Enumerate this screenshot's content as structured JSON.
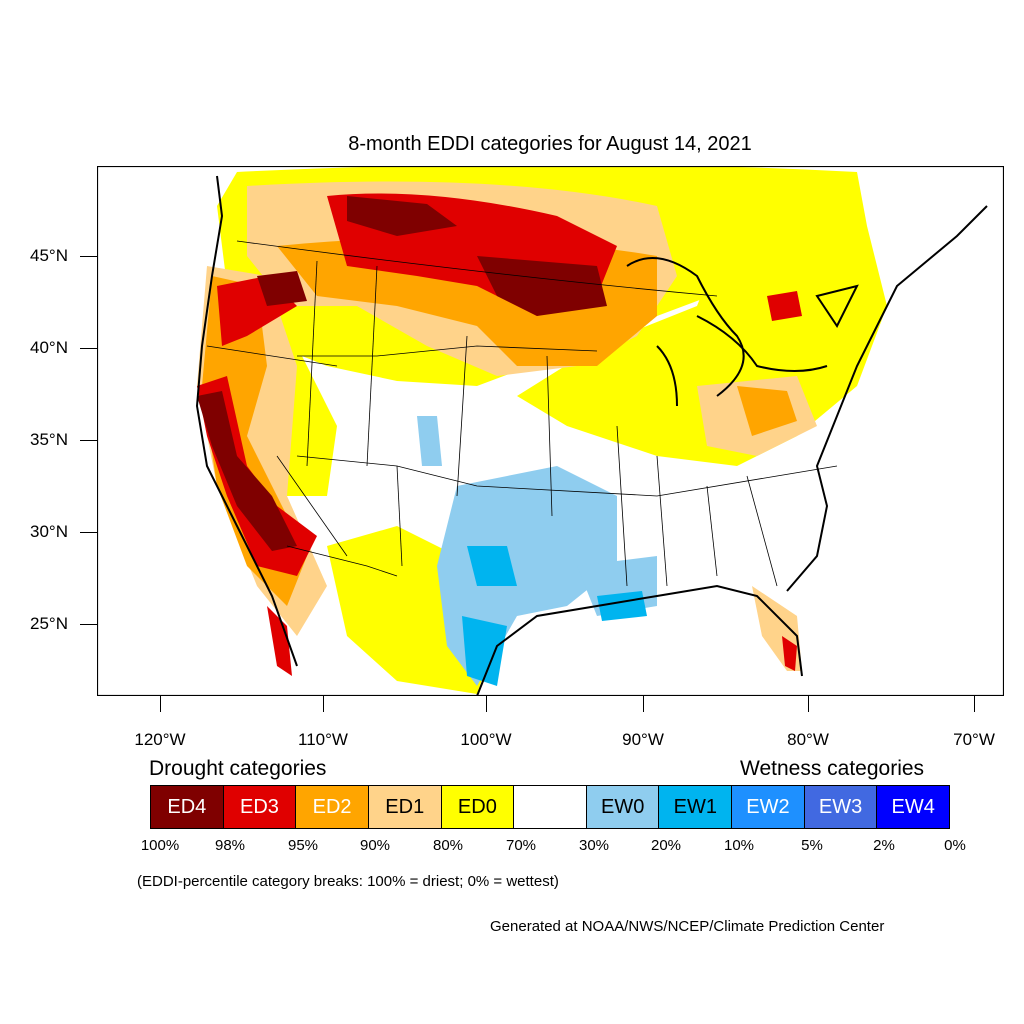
{
  "title": "8-month EDDI categories for August 14, 2021",
  "map": {
    "projection": "lambert-conformal",
    "lat_labels": [
      "45°N",
      "40°N",
      "35°N",
      "30°N",
      "25°N"
    ],
    "lon_labels": [
      "120°W",
      "110°W",
      "100°W",
      "90°W",
      "80°W",
      "70°W"
    ],
    "colors": {
      "ED4": "#7f0000",
      "ED3": "#e00000",
      "ED2": "#ffa500",
      "ED1": "#ffd38a",
      "ED0": "#ffff00",
      "neutral": "#ffffff",
      "EW0": "#8fcdef",
      "EW1": "#00b4ef",
      "EW2": "#1e90ff",
      "EW3": "#4169e1",
      "EW4": "#0000ff"
    }
  },
  "legend": {
    "drought_title": "Drought categories",
    "wetness_title": "Wetness categories",
    "categories": [
      {
        "label": "ED4",
        "color": "#7f0000",
        "text_color": "#ffffff"
      },
      {
        "label": "ED3",
        "color": "#e00000",
        "text_color": "#ffffff"
      },
      {
        "label": "ED2",
        "color": "#ffa500",
        "text_color": "#ffffff"
      },
      {
        "label": "ED1",
        "color": "#ffd38a",
        "text_color": "#000000"
      },
      {
        "label": "ED0",
        "color": "#ffff00",
        "text_color": "#000000"
      },
      {
        "label": "",
        "color": "#ffffff",
        "text_color": "#000000"
      },
      {
        "label": "EW0",
        "color": "#8fcdef",
        "text_color": "#000000"
      },
      {
        "label": "EW1",
        "color": "#00b4ef",
        "text_color": "#000000"
      },
      {
        "label": "EW2",
        "color": "#1e90ff",
        "text_color": "#ffffff"
      },
      {
        "label": "EW3",
        "color": "#4169e1",
        "text_color": "#ffffff"
      },
      {
        "label": "EW4",
        "color": "#0000ff",
        "text_color": "#ffffff"
      }
    ],
    "percent_breaks": [
      "100%",
      "98%",
      "95%",
      "90%",
      "80%",
      "70%",
      "30%",
      "20%",
      "10%",
      "5%",
      "2%",
      "0%"
    ]
  },
  "note": "(EDDI-percentile category breaks: 100% = driest; 0% = wettest)",
  "credit": "Generated at NOAA/NWS/NCEP/Climate Prediction Center"
}
